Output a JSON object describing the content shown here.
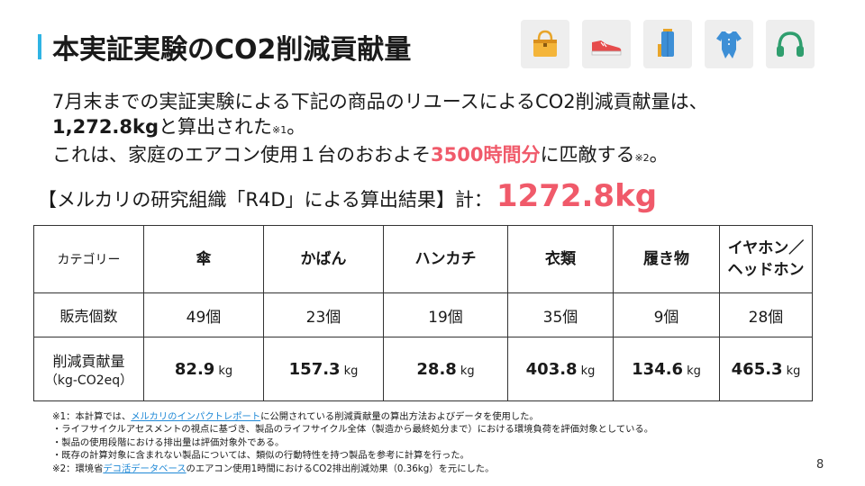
{
  "title": "本実証実験のCO2削減貢献量",
  "icons": [
    "handbag-icon",
    "sneaker-icon",
    "umbrella-icon",
    "baby-romper-icon",
    "headphones-icon"
  ],
  "accent_color": "#2fb4e4",
  "highlight_color": "#f05a6a",
  "intro": {
    "line1": "7月末までの実証実験による下記の商品のリユースによるCO2削減貢献量は、",
    "amount": "1,272.8kg",
    "line2_rest": "と算出された",
    "note1": "※1",
    "line2_end": "。",
    "line3_a": "これは、家庭のエアコン使用１台のおおよそ",
    "hours": "3500時間分",
    "line3_b": "に匹敵する",
    "note2": "※2",
    "line3_end": "。"
  },
  "result": {
    "label": "【メルカリの研究組織「R4D」による算出結果】計：",
    "total": "1272.8kg"
  },
  "table": {
    "header_label": "カテゴリー",
    "categories": [
      "傘",
      "かばん",
      "ハンカチ",
      "衣類",
      "履き物",
      "イヤホン／ヘッドホン"
    ],
    "sales_label": "販売個数",
    "sales": [
      "49個",
      "23個",
      "19個",
      "35個",
      "9個",
      "28個"
    ],
    "reduction_label": "削減貢献量",
    "reduction_unit_label": "（kg-CO2eq）",
    "reductions": [
      "82.9",
      "157.3",
      "28.8",
      "403.8",
      "134.6",
      "465.3"
    ],
    "unit": "kg"
  },
  "notes": {
    "n1_a": "※1：本計算では、",
    "n1_link": "メルカリのインパクトレポート",
    "n1_b": "に公開されている削減貢献量の算出方法およびデータを使用した。",
    "n2": "・ライフサイクルアセスメントの視点に基づき、製品のライフサイクル全体（製造から最終処分まで）における環境負荷を評価対象としている。",
    "n3": "・製品の使用段階における排出量は評価対象外である。",
    "n4": "・既存の計算対象に含まれない製品については、類似の行動特性を持つ製品を参考に計算を行った。",
    "n5_a": "※2：環境省",
    "n5_link": "デコ活データベース",
    "n5_b": "のエアコン使用1時間におけるCO2排出削減効果（0.36kg）を元にした。"
  },
  "page_number": "8"
}
